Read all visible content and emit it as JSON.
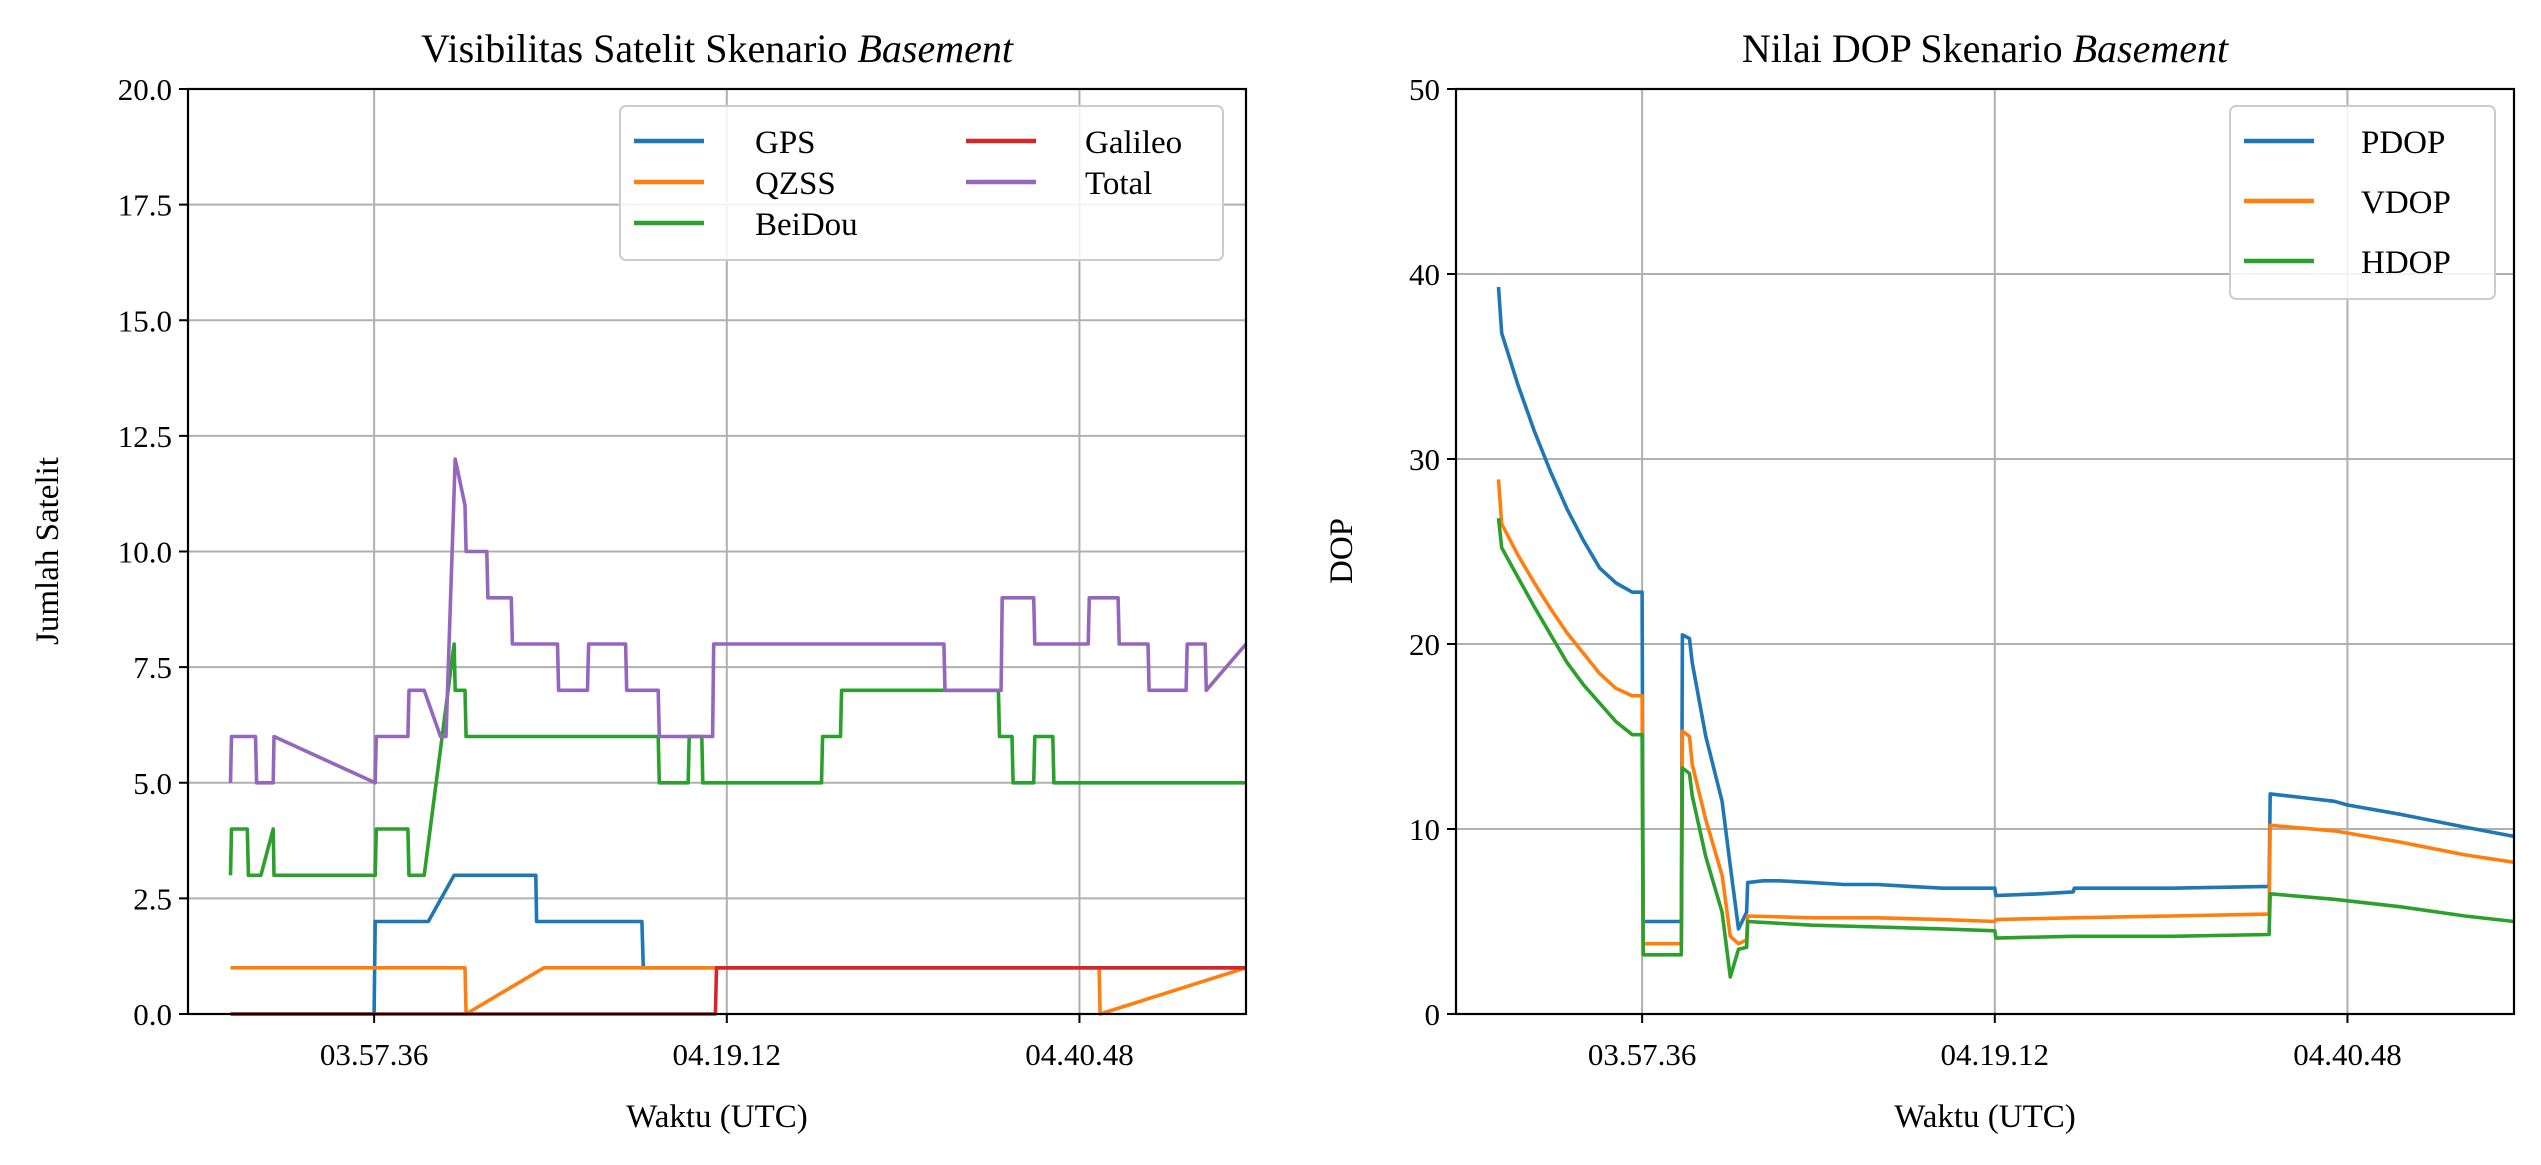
{
  "colors": {
    "blue": "#1f77b4",
    "orange": "#ff7f0e",
    "green": "#2ca02c",
    "red": "#d62728",
    "purple": "#9467bd",
    "grid": "#b0b0b0"
  },
  "chart_data": [
    {
      "type": "line",
      "title": "Visibilitas Satelit Skenario",
      "title_emphasis": "Basement",
      "xlabel": "Waktu (UTC)",
      "ylabel": "Jumlah Satelit",
      "ylim": [
        0,
        20
      ],
      "yticks": [
        "0.0",
        "2.5",
        "5.0",
        "7.5",
        "10.0",
        "12.5",
        "15.0",
        "17.5",
        "20.0"
      ],
      "xlim": [
        "03.46.12",
        "04.51.00"
      ],
      "xticks": [
        "03.57.36",
        "04.19.12",
        "04.40.48"
      ],
      "grid": true,
      "legend": {
        "position": "top-right",
        "columns": 2
      },
      "series": [
        {
          "name": "GPS",
          "color": "#1f77b4",
          "x": [
            "03.48.48",
            "03.57.36",
            "03.57.40",
            "04.00.55",
            "04.02.30",
            "04.04.25",
            "04.04.40",
            "04.07.30",
            "04.07.33",
            "04.14.00",
            "04.14.05",
            "04.15.10",
            "04.15.14",
            "04.16.00",
            "04.16.04",
            "04.18.20",
            "04.18.27",
            "04.51.00"
          ],
          "y": [
            0,
            0,
            2,
            2,
            3,
            3,
            3,
            3,
            2,
            2,
            1,
            1,
            1,
            1,
            1,
            1,
            1,
            1
          ]
        },
        {
          "name": "QZSS",
          "color": "#ff7f0e",
          "x": [
            "03.48.48",
            "04.03.10",
            "04.03.14",
            "04.08.00",
            "04.08.04",
            "04.34.00",
            "04.34.04",
            "04.42.00",
            "04.42.04",
            "04.51.00"
          ],
          "y": [
            1,
            1,
            0,
            1,
            1,
            1,
            1,
            1,
            0,
            1
          ]
        },
        {
          "name": "BeiDou",
          "color": "#2ca02c",
          "x": [
            "03.48.48",
            "03.48.52",
            "03.49.50",
            "03.49.54",
            "03.50.40",
            "03.51.25",
            "03.51.28",
            "03.57.40",
            "03.57.44",
            "03.59.40",
            "03.59.44",
            "04.00.40",
            "04.02.30",
            "04.02.34",
            "04.03.10",
            "04.03.14",
            "04.15.00",
            "04.15.04",
            "04.16.50",
            "04.16.54",
            "04.17.40",
            "04.17.44",
            "04.25.00",
            "04.25.04",
            "04.26.10",
            "04.26.14",
            "04.35.50",
            "04.35.54",
            "04.36.40",
            "04.36.44",
            "04.38.00",
            "04.38.04",
            "04.39.10",
            "04.39.14",
            "04.43.20",
            "04.43.24",
            "04.51.00"
          ],
          "y": [
            3,
            4,
            4,
            3,
            3,
            4,
            3,
            3,
            4,
            4,
            3,
            3,
            8,
            7,
            7,
            6,
            6,
            5,
            5,
            6,
            6,
            5,
            5,
            6,
            6,
            7,
            7,
            6,
            6,
            5,
            5,
            6,
            6,
            5,
            5,
            5,
            5
          ]
        },
        {
          "name": "Galileo",
          "color": "#d62728",
          "x": [
            "03.48.48",
            "04.18.30",
            "04.18.34",
            "04.33.00",
            "04.33.04",
            "04.51.00"
          ],
          "y": [
            0,
            0,
            1,
            1,
            1,
            1
          ]
        },
        {
          "name": "Total",
          "color": "#9467bd",
          "x": [
            "03.48.48",
            "03.48.52",
            "03.50.20",
            "03.50.24",
            "03.51.25",
            "03.51.28",
            "03.57.40",
            "03.57.44",
            "03.59.40",
            "03.59.44",
            "04.00.40",
            "04.01.40",
            "04.02.00",
            "04.02.34",
            "04.03.10",
            "04.03.14",
            "04.04.30",
            "04.04.34",
            "04.06.00",
            "04.06.04",
            "04.08.50",
            "04.08.54",
            "04.10.40",
            "04.10.44",
            "04.13.00",
            "04.13.04",
            "04.15.00",
            "04.15.04",
            "04.18.20",
            "04.18.24",
            "04.32.30",
            "04.32.34",
            "04.36.00",
            "04.36.04",
            "04.38.00",
            "04.38.04",
            "04.41.20",
            "04.41.24",
            "04.43.10",
            "04.43.14",
            "04.45.00",
            "04.45.04",
            "04.47.20",
            "04.47.24",
            "04.48.30",
            "04.48.34",
            "04.51.00"
          ],
          "y": [
            5,
            6,
            6,
            5,
            5,
            6,
            5,
            6,
            6,
            7,
            7,
            6,
            6,
            12,
            11,
            10,
            10,
            9,
            9,
            8,
            8,
            7,
            7,
            8,
            8,
            7,
            7,
            6,
            6,
            8,
            8,
            7,
            7,
            9,
            9,
            8,
            8,
            9,
            9,
            8,
            8,
            7,
            7,
            8,
            8,
            7,
            8
          ]
        }
      ]
    },
    {
      "type": "line",
      "title": "Nilai DOP Skenario",
      "title_emphasis": "Basement",
      "xlabel": "Waktu (UTC)",
      "ylabel": "DOP",
      "ylim": [
        0,
        50
      ],
      "yticks": [
        "0",
        "10",
        "20",
        "30",
        "40",
        "50"
      ],
      "xlim": [
        "03.46.12",
        "04.51.00"
      ],
      "xticks": [
        "03.57.36",
        "04.19.12",
        "04.40.48"
      ],
      "grid": true,
      "legend": {
        "position": "top-right",
        "columns": 1
      },
      "series": [
        {
          "name": "PDOP",
          "color": "#1f77b4",
          "x": [
            "03.48.48",
            "03.49.00",
            "03.50.00",
            "03.51.00",
            "03.52.00",
            "03.53.00",
            "03.54.00",
            "03.55.00",
            "03.56.00",
            "03.57.00",
            "03.57.36",
            "03.57.40",
            "04.00.00",
            "04.00.04",
            "04.00.30",
            "04.00.40",
            "04.01.30",
            "04.02.30",
            "04.03.00",
            "04.03.30",
            "04.04.00",
            "04.04.04",
            "04.05.00",
            "04.06.00",
            "04.08.00",
            "04.10.00",
            "04.12.00",
            "04.14.00",
            "04.16.00",
            "04.18.00",
            "04.19.12",
            "04.19.16",
            "04.22.00",
            "04.24.00",
            "04.24.04",
            "04.30.00",
            "04.36.00",
            "04.36.04",
            "04.38.00",
            "04.40.00",
            "04.40.48",
            "04.44.00",
            "04.48.00",
            "04.51.00"
          ],
          "y": [
            39.3,
            36.8,
            34.0,
            31.5,
            29.3,
            27.3,
            25.6,
            24.1,
            23.3,
            22.8,
            22.8,
            5.0,
            5.0,
            20.5,
            20.3,
            19.0,
            15.0,
            11.5,
            8.0,
            4.6,
            5.5,
            7.1,
            7.2,
            7.2,
            7.1,
            7.0,
            7.0,
            6.9,
            6.8,
            6.8,
            6.8,
            6.4,
            6.5,
            6.6,
            6.8,
            6.8,
            6.9,
            11.9,
            11.7,
            11.5,
            11.3,
            10.8,
            10.1,
            9.6
          ]
        },
        {
          "name": "VDOP",
          "color": "#ff7f0e",
          "x": [
            "03.48.48",
            "03.49.00",
            "03.50.00",
            "03.51.00",
            "03.52.00",
            "03.53.00",
            "03.54.00",
            "03.55.00",
            "03.56.00",
            "03.57.00",
            "03.57.36",
            "03.57.40",
            "04.00.00",
            "04.00.04",
            "04.00.30",
            "04.00.40",
            "04.01.30",
            "04.02.30",
            "04.03.00",
            "04.03.30",
            "04.04.00",
            "04.04.04",
            "04.08.00",
            "04.12.00",
            "04.16.00",
            "04.19.12",
            "04.19.16",
            "04.24.00",
            "04.30.00",
            "04.36.00",
            "04.36.04",
            "04.40.00",
            "04.44.00",
            "04.48.00",
            "04.51.00"
          ],
          "y": [
            28.9,
            26.5,
            24.8,
            23.3,
            21.9,
            20.6,
            19.5,
            18.4,
            17.6,
            17.2,
            17.2,
            3.8,
            3.8,
            15.3,
            15.0,
            13.5,
            10.5,
            7.5,
            4.2,
            3.8,
            4.0,
            5.3,
            5.2,
            5.2,
            5.1,
            5.0,
            5.1,
            5.2,
            5.3,
            5.4,
            10.2,
            9.9,
            9.3,
            8.6,
            8.2
          ]
        },
        {
          "name": "HDOP",
          "color": "#2ca02c",
          "x": [
            "03.48.48",
            "03.49.00",
            "03.50.00",
            "03.51.00",
            "03.52.00",
            "03.53.00",
            "03.54.00",
            "03.55.00",
            "03.56.00",
            "03.57.00",
            "03.57.36",
            "03.57.40",
            "04.00.00",
            "04.00.04",
            "04.00.30",
            "04.00.40",
            "04.01.30",
            "04.02.30",
            "04.03.00",
            "04.03.30",
            "04.04.00",
            "04.04.04",
            "04.08.00",
            "04.12.00",
            "04.16.00",
            "04.19.12",
            "04.19.16",
            "04.24.00",
            "04.30.00",
            "04.36.00",
            "04.36.04",
            "04.40.00",
            "04.44.00",
            "04.48.00",
            "04.51.00"
          ],
          "y": [
            26.8,
            25.2,
            23.6,
            22.0,
            20.5,
            19.0,
            17.8,
            16.8,
            15.8,
            15.1,
            15.1,
            3.2,
            3.2,
            13.3,
            13.0,
            11.8,
            8.5,
            5.5,
            2.0,
            3.5,
            3.6,
            5.0,
            4.8,
            4.7,
            4.6,
            4.5,
            4.1,
            4.2,
            4.2,
            4.3,
            6.5,
            6.2,
            5.8,
            5.3,
            5.0
          ]
        }
      ]
    }
  ]
}
